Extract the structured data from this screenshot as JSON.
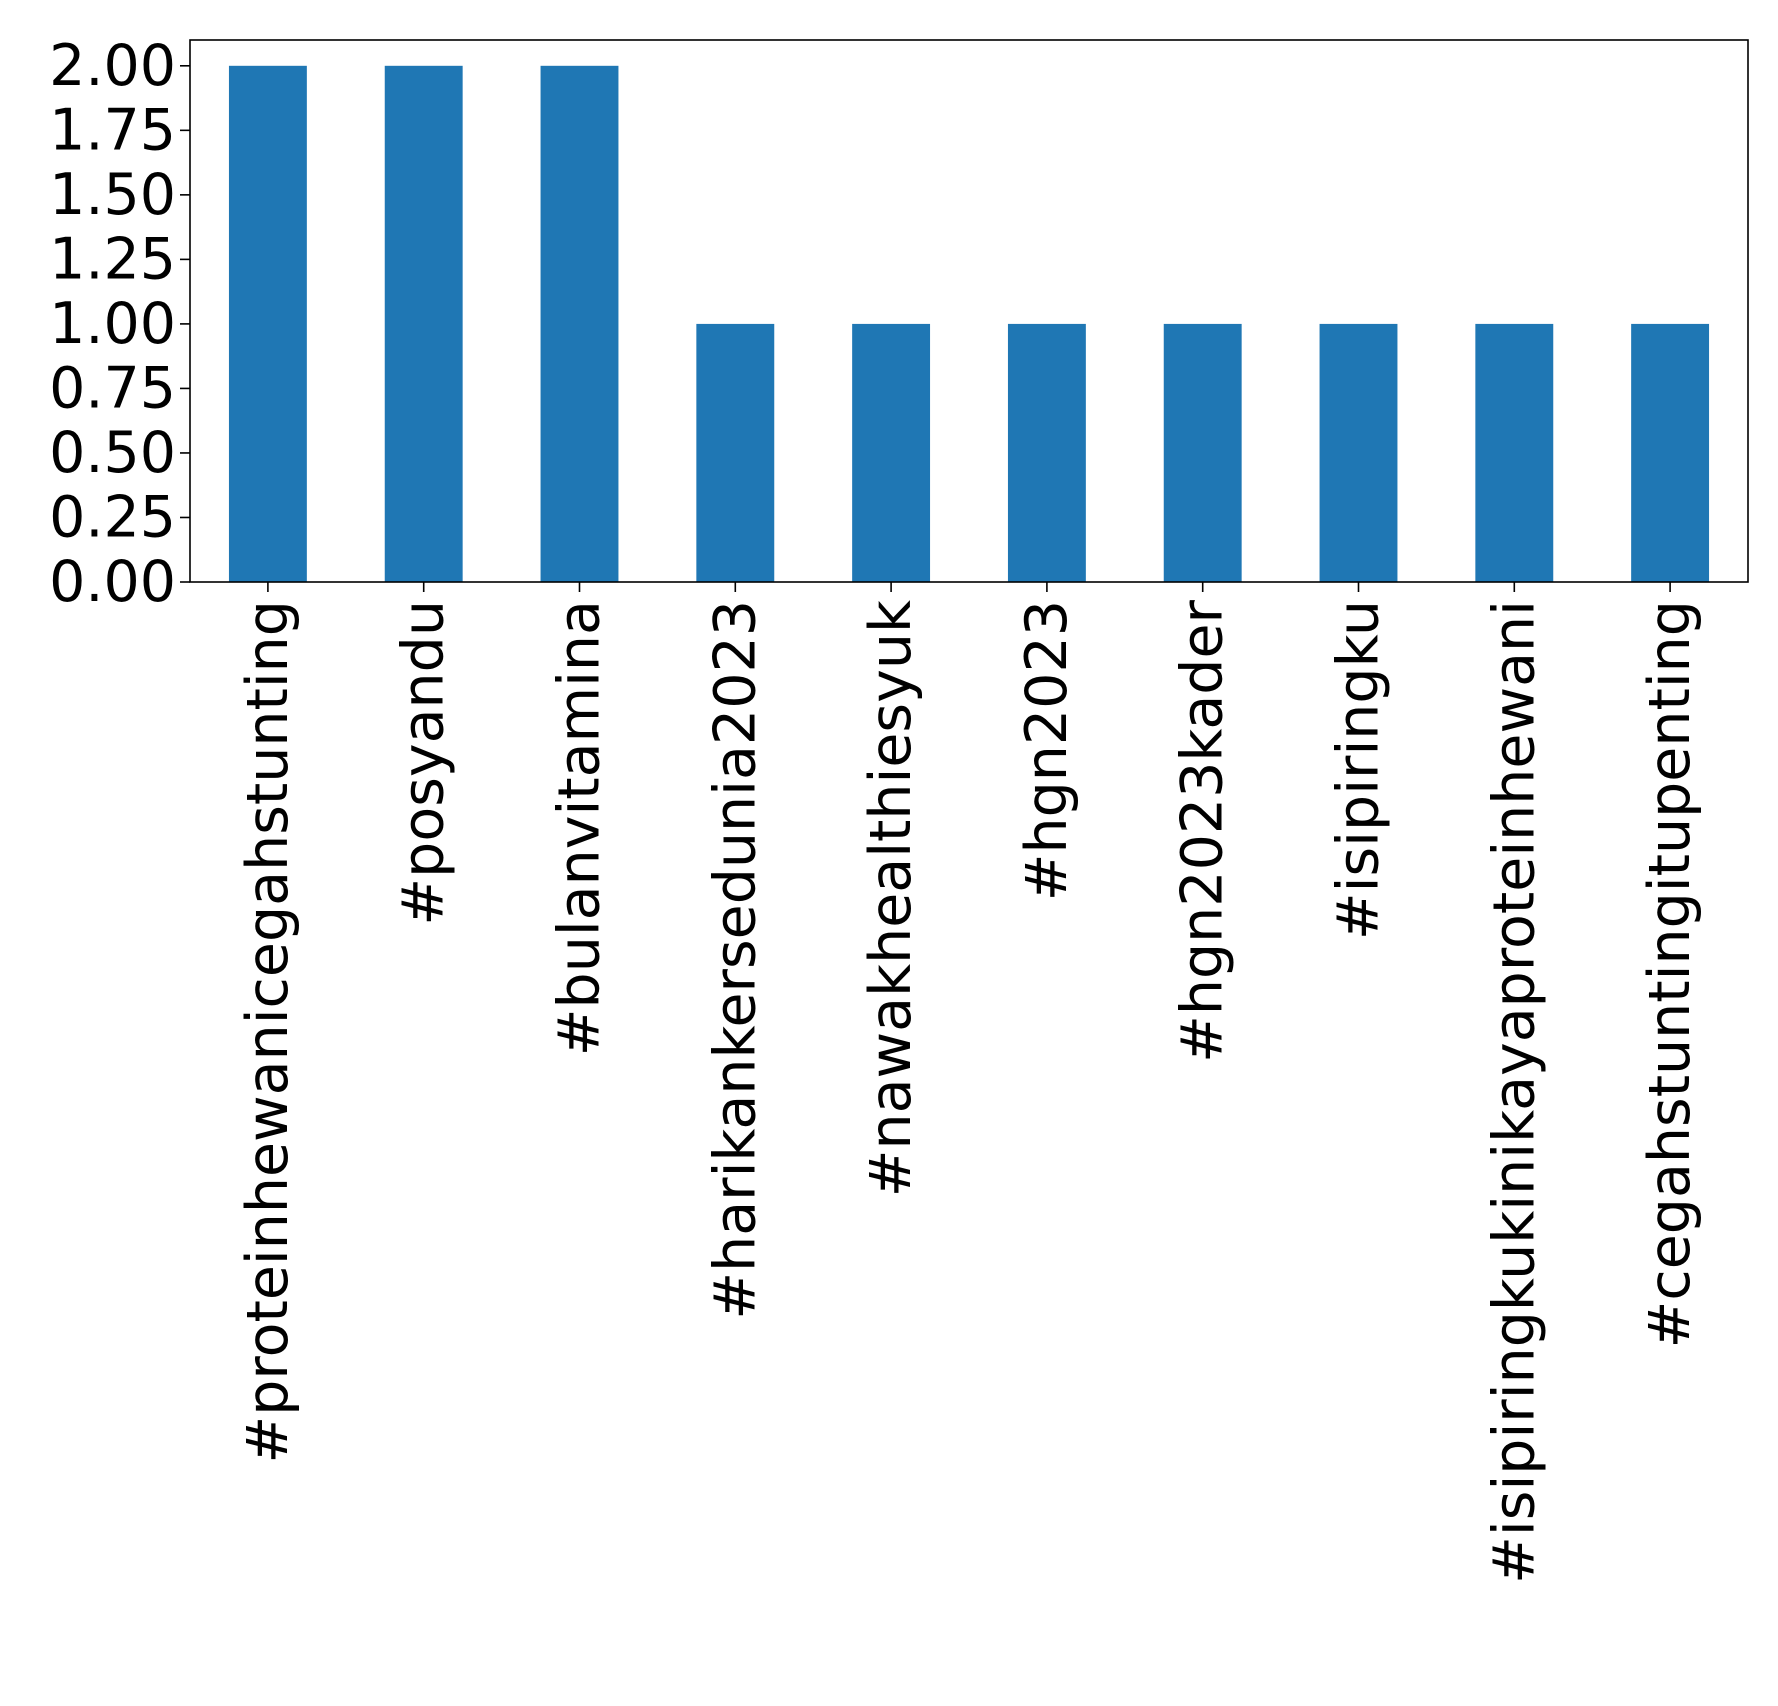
{
  "chart_data": {
    "type": "bar",
    "title": "",
    "xlabel": "",
    "ylabel": "",
    "categories": [
      "#proteinhewanicegahstunting",
      "#posyandu",
      "#bulanvitamina",
      "#harikankersedunia2023",
      "#nawakhealthiesyuk",
      "#hgn2023",
      "#hgn2023kader",
      "#isipiringku",
      "#isipiringkukinikayaproteinhewani",
      "#cegahstuntingitupenting"
    ],
    "values": [
      2,
      2,
      2,
      1,
      1,
      1,
      1,
      1,
      1,
      1
    ],
    "ylim": [
      0,
      2.1
    ],
    "yticks": [
      "0.00",
      "0.25",
      "0.50",
      "0.75",
      "1.00",
      "1.25",
      "1.50",
      "1.75",
      "2.00"
    ],
    "bar_color": "#1f77b4",
    "grid": false,
    "legend": "none"
  }
}
